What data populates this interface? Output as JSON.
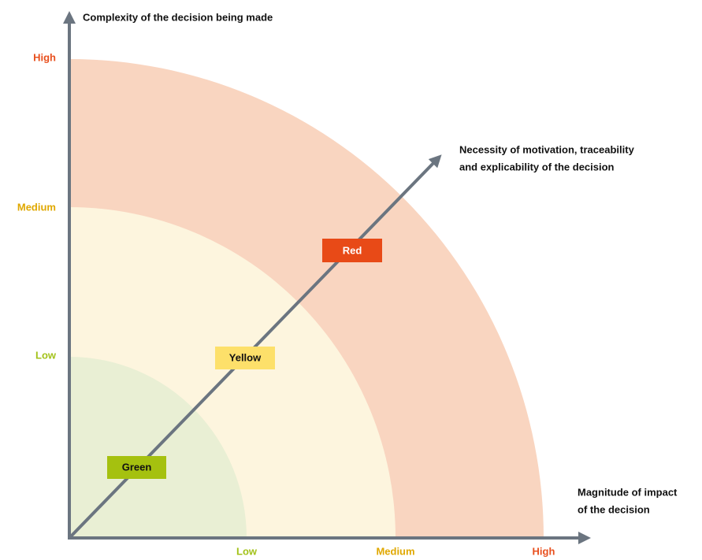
{
  "y_axis": {
    "title": "Complexity of the decision being made",
    "levels": [
      "Low",
      "Medium",
      "High"
    ]
  },
  "x_axis": {
    "title_lines": [
      "Magnitude of impact",
      "of the decision"
    ],
    "levels": [
      "Low",
      "Medium",
      "High"
    ]
  },
  "diagonal_axis": {
    "title_lines": [
      "Necessity of motivation, traceability",
      "and explicability of the decision"
    ]
  },
  "zones": [
    "Green",
    "Yellow",
    "Red"
  ]
}
